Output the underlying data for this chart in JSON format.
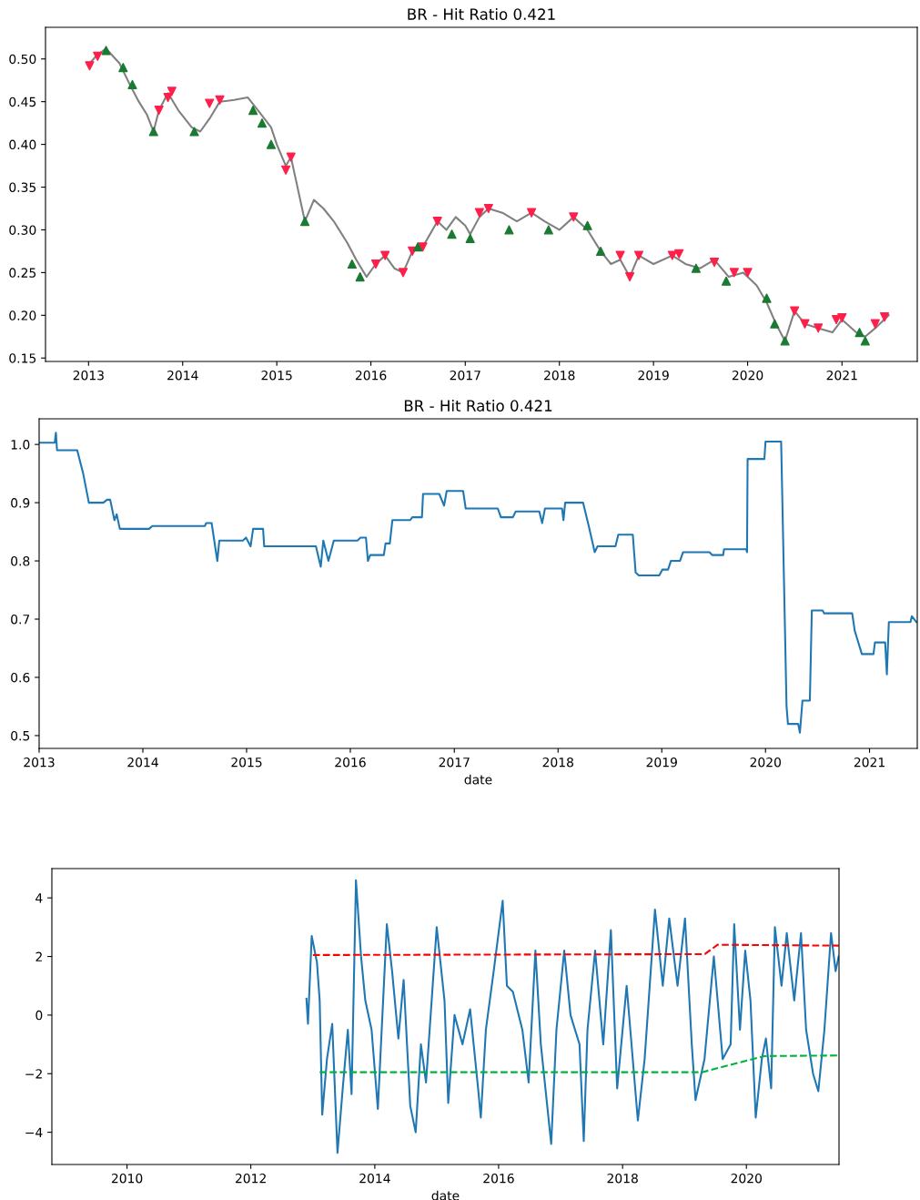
{
  "chart_data": [
    {
      "type": "line",
      "title": "BR - Hit Ratio 0.421",
      "xlim": [
        "2012-07-18",
        "2021-10-20"
      ],
      "ylim": [
        0.146,
        0.537
      ],
      "xticks": [
        "2013",
        "2014",
        "2015",
        "2016",
        "2017",
        "2018",
        "2019",
        "2020",
        "2021"
      ],
      "yticks": [
        0.15,
        {
          "value": 0.2,
          "label": "0.20"
        },
        0.25,
        {
          "value": 0.3,
          "label": "0.30"
        },
        0.35,
        {
          "value": 0.4,
          "label": "0.40"
        },
        0.45,
        {
          "value": 0.5,
          "label": "0.50"
        }
      ],
      "grid": false,
      "legend": false,
      "series": [
        {
          "color": "#808080",
          "marker": "none",
          "x": [
            "2013-01-05",
            "2013-02-05",
            "2013-03-10",
            "2013-05-01",
            "2013-06-10",
            "2013-07-15",
            "2013-08-15",
            "2013-09-10",
            "2013-10-01",
            "2013-11-05",
            "2013-12-15",
            "2014-02-05",
            "2014-03-10",
            "2014-04-15",
            "2014-05-25",
            "2014-07-20",
            "2014-09-10",
            "2014-10-20",
            "2014-12-10",
            "2015-01-01",
            "2015-02-05",
            "2015-02-25",
            "2015-03-15",
            "2015-04-20",
            "2015-05-25",
            "2015-07-01",
            "2015-08-10",
            "2015-10-01",
            "2015-11-05",
            "2015-12-15",
            "2016-01-20",
            "2016-02-25",
            "2016-04-01",
            "2016-05-05",
            "2016-06-10",
            "2016-07-20",
            "2016-09-15",
            "2016-10-20",
            "2016-11-25",
            "2017-01-01",
            "2017-01-20",
            "2017-02-25",
            "2017-04-01",
            "2017-05-25",
            "2017-07-20",
            "2017-09-15",
            "2017-11-05",
            "2018-01-01",
            "2018-02-25",
            "2018-04-20",
            "2018-06-10",
            "2018-07-20",
            "2018-08-25",
            "2018-10-01",
            "2018-11-05",
            "2019-01-01",
            "2019-03-15",
            "2019-05-05",
            "2019-07-01",
            "2019-08-25",
            "2019-10-20",
            "2019-12-15",
            "2020-01-01",
            "2020-02-05",
            "2020-03-15",
            "2020-04-20",
            "2020-05-25",
            "2020-07-01",
            "2020-08-10",
            "2020-10-01",
            "2020-11-25",
            "2021-01-01",
            "2021-02-25",
            "2021-04-01",
            "2021-05-10",
            "2021-07-01"
          ],
          "values": [
            0.495,
            0.505,
            0.512,
            0.495,
            0.47,
            0.45,
            0.435,
            0.415,
            0.44,
            0.46,
            0.44,
            0.42,
            0.415,
            0.43,
            0.45,
            0.452,
            0.455,
            0.44,
            0.42,
            0.4,
            0.375,
            0.385,
            0.36,
            0.31,
            0.335,
            0.325,
            0.31,
            0.285,
            0.265,
            0.245,
            0.26,
            0.27,
            0.255,
            0.25,
            0.275,
            0.28,
            0.31,
            0.3,
            0.315,
            0.305,
            0.295,
            0.315,
            0.325,
            0.32,
            0.31,
            0.32,
            0.31,
            0.3,
            0.315,
            0.3,
            0.275,
            0.26,
            0.265,
            0.245,
            0.27,
            0.26,
            0.27,
            0.26,
            0.255,
            0.265,
            0.245,
            0.25,
            0.245,
            0.235,
            0.215,
            0.19,
            0.17,
            0.205,
            0.19,
            0.185,
            0.18,
            0.195,
            0.18,
            0.175,
            0.185,
            0.2
          ]
        },
        {
          "type": "scatter",
          "color": "#ff1f4b",
          "marker": "triangle_down",
          "x": [
            "2013-01-05",
            "2013-02-05",
            "2013-10-01",
            "2013-11-05",
            "2013-11-20",
            "2014-04-15",
            "2014-05-25",
            "2015-02-05",
            "2015-02-25",
            "2016-01-20",
            "2016-02-25",
            "2016-05-05",
            "2016-06-10",
            "2016-07-20",
            "2016-09-15",
            "2017-02-25",
            "2017-04-01",
            "2017-09-15",
            "2018-02-25",
            "2018-08-25",
            "2018-10-01",
            "2018-11-05",
            "2019-03-15",
            "2019-04-10",
            "2019-08-25",
            "2019-11-10",
            "2020-01-01",
            "2020-07-01",
            "2020-08-10",
            "2020-10-01",
            "2020-12-10",
            "2021-01-01",
            "2021-05-10",
            "2021-06-15"
          ],
          "values": [
            0.492,
            0.503,
            0.44,
            0.455,
            0.462,
            0.448,
            0.452,
            0.37,
            0.385,
            0.26,
            0.27,
            0.25,
            0.275,
            0.28,
            0.31,
            0.32,
            0.325,
            0.32,
            0.315,
            0.27,
            0.245,
            0.27,
            0.27,
            0.272,
            0.262,
            0.25,
            0.25,
            0.205,
            0.19,
            0.185,
            0.195,
            0.197,
            0.19,
            0.198
          ]
        },
        {
          "type": "scatter",
          "color": "#1a7a32",
          "marker": "triangle",
          "x": [
            "2013-03-10",
            "2013-05-15",
            "2013-06-20",
            "2013-09-10",
            "2014-02-15",
            "2014-10-01",
            "2014-11-05",
            "2014-12-10",
            "2015-04-20",
            "2015-10-20",
            "2015-11-20",
            "2016-07-01",
            "2016-11-10",
            "2017-01-20",
            "2017-06-20",
            "2017-11-20",
            "2018-04-20",
            "2018-06-10",
            "2019-06-15",
            "2019-10-10",
            "2020-03-15",
            "2020-04-15",
            "2020-05-25",
            "2021-03-10",
            "2021-04-01"
          ],
          "values": [
            0.51,
            0.49,
            0.47,
            0.415,
            0.415,
            0.44,
            0.425,
            0.4,
            0.31,
            0.26,
            0.245,
            0.28,
            0.295,
            0.29,
            0.3,
            0.3,
            0.305,
            0.275,
            0.255,
            0.24,
            0.22,
            0.19,
            0.17,
            0.18,
            0.17
          ]
        }
      ]
    },
    {
      "type": "line",
      "title": "BR - Hit Ratio 0.421",
      "xlabel": "date",
      "xlim": [
        "2013-01-01",
        "2021-06-18"
      ],
      "ylim": [
        0.478,
        1.044
      ],
      "xticks": [
        "2013",
        "2014",
        "2015",
        "2016",
        "2017",
        "2018",
        "2019",
        "2020",
        "2021"
      ],
      "yticks": [
        0.5,
        0.6,
        0.7,
        0.8,
        0.9,
        {
          "value": 1,
          "label": "1.0"
        }
      ],
      "grid": false,
      "legend": false,
      "series": [
        {
          "color": "#1f77b4",
          "marker": "none",
          "x": [
            "2013-01-01",
            "2013-02-25",
            "2013-03-01",
            "2013-03-05",
            "2013-05-15",
            "2013-06-05",
            "2013-06-25",
            "2013-08-15",
            "2013-08-28",
            "2013-09-08",
            "2013-09-23",
            "2013-10-01",
            "2013-10-12",
            "2014-01-23",
            "2014-02-03",
            "2014-08-07",
            "2014-08-12",
            "2014-08-31",
            "2014-09-20",
            "2014-09-27",
            "2014-12-19",
            "2014-12-30",
            "2015-01-15",
            "2015-01-24",
            "2015-02-28",
            "2015-03-04",
            "2015-09-02",
            "2015-09-19",
            "2015-09-28",
            "2015-10-16",
            "2015-11-04",
            "2016-01-26",
            "2016-02-06",
            "2016-02-25",
            "2016-03-03",
            "2016-03-11",
            "2016-04-28",
            "2016-05-04",
            "2016-05-19",
            "2016-05-28",
            "2016-07-30",
            "2016-08-06",
            "2016-09-09",
            "2016-09-13",
            "2016-11-09",
            "2016-11-26",
            "2016-12-05",
            "2017-02-01",
            "2017-02-10",
            "2017-06-03",
            "2017-06-14",
            "2017-07-26",
            "2017-08-05",
            "2017-10-27",
            "2017-11-06",
            "2017-11-16",
            "2018-01-15",
            "2018-01-20",
            "2018-01-26",
            "2018-03-30",
            "2018-04-19",
            "2018-05-10",
            "2018-05-20",
            "2018-07-22",
            "2018-08-01",
            "2018-09-21",
            "2018-10-01",
            "2018-10-12",
            "2018-12-23",
            "2019-01-03",
            "2019-01-23",
            "2019-02-02",
            "2019-03-06",
            "2019-03-17",
            "2019-06-18",
            "2019-06-28",
            "2019-08-05",
            "2019-08-08",
            "2019-10-25",
            "2019-10-28",
            "2019-10-30",
            "2019-12-28",
            "2020-01-01",
            "2020-02-25",
            "2020-03-15",
            "2020-03-20",
            "2020-04-25",
            "2020-05-01",
            "2020-05-10",
            "2020-06-05",
            "2020-06-12",
            "2020-07-20",
            "2020-07-25",
            "2020-11-01",
            "2020-11-10",
            "2020-12-05",
            "2021-01-15",
            "2021-01-20",
            "2021-02-25",
            "2021-03-03",
            "2021-03-10",
            "2021-05-25",
            "2021-05-30",
            "2021-06-15"
          ],
          "values": [
            1.003,
            1.003,
            1.02,
            0.99,
            0.99,
            0.95,
            0.9,
            0.9,
            0.905,
            0.905,
            0.87,
            0.88,
            0.855,
            0.855,
            0.86,
            0.86,
            0.865,
            0.865,
            0.8,
            0.835,
            0.835,
            0.84,
            0.825,
            0.855,
            0.855,
            0.825,
            0.825,
            0.79,
            0.835,
            0.8,
            0.835,
            0.835,
            0.84,
            0.84,
            0.8,
            0.81,
            0.81,
            0.83,
            0.83,
            0.87,
            0.87,
            0.875,
            0.875,
            0.915,
            0.915,
            0.895,
            0.92,
            0.92,
            0.89,
            0.89,
            0.875,
            0.875,
            0.885,
            0.885,
            0.865,
            0.89,
            0.89,
            0.87,
            0.9,
            0.9,
            0.86,
            0.815,
            0.825,
            0.825,
            0.845,
            0.845,
            0.78,
            0.775,
            0.775,
            0.785,
            0.785,
            0.8,
            0.8,
            0.815,
            0.815,
            0.81,
            0.81,
            0.82,
            0.82,
            0.815,
            0.975,
            0.975,
            1.005,
            1.005,
            0.55,
            0.52,
            0.52,
            0.505,
            0.56,
            0.56,
            0.715,
            0.715,
            0.71,
            0.71,
            0.68,
            0.64,
            0.64,
            0.66,
            0.66,
            0.605,
            0.695,
            0.695,
            0.705,
            0.695
          ]
        }
      ]
    },
    {
      "type": "line",
      "xlabel": "date",
      "xlim": [
        "2008-10-15",
        "2021-06-30"
      ],
      "ylim": [
        -5.1,
        5.0
      ],
      "xticks": [
        "2010",
        "2012",
        "2014",
        "2016",
        "2018",
        "2020"
      ],
      "yticks": [
        {
          "value": -4,
          "label": "−4"
        },
        {
          "value": -2,
          "label": "−2"
        },
        0,
        2,
        4
      ],
      "grid": false,
      "legend": false,
      "series": [
        {
          "color": "#1f77b4",
          "line_style": "solid",
          "x": [
            "2012-11-24",
            "2012-12-03",
            "2012-12-25",
            "2013-01-25",
            "2013-02-10",
            "2013-02-25",
            "2013-03-25",
            "2013-04-25",
            "2013-05-26",
            "2013-06-26",
            "2013-07-26",
            "2013-08-17",
            "2013-09-12",
            "2013-10-12",
            "2013-11-06",
            "2013-12-13",
            "2014-01-19",
            "2014-03-13",
            "2014-04-13",
            "2014-05-20",
            "2014-06-20",
            "2014-07-29",
            "2014-08-30",
            "2014-09-30",
            "2014-10-30",
            "2015-01-01",
            "2015-02-16",
            "2015-03-10",
            "2015-04-16",
            "2015-06-02",
            "2015-07-17",
            "2015-09-02",
            "2015-09-18",
            "2015-10-18",
            "2015-12-03",
            "2016-01-25",
            "2016-02-19",
            "2016-03-25",
            "2016-05-20",
            "2016-06-26",
            "2016-08-05",
            "2016-09-06",
            "2016-11-06",
            "2016-12-07",
            "2017-01-22",
            "2017-02-28",
            "2017-04-22",
            "2017-05-17",
            "2017-06-08",
            "2017-07-23",
            "2017-09-09",
            "2017-10-24",
            "2017-11-30",
            "2018-01-25",
            "2018-04-01",
            "2018-05-11",
            "2018-07-11",
            "2018-08-26",
            "2018-10-03",
            "2018-11-21",
            "2019-01-04",
            "2019-02-13",
            "2019-03-07",
            "2019-04-29",
            "2019-06-23",
            "2019-08-14",
            "2019-09-30",
            "2019-10-21",
            "2019-11-24",
            "2019-12-25",
            "2020-01-25",
            "2020-02-25",
            "2020-04-01",
            "2020-04-25",
            "2020-05-26",
            "2020-06-17",
            "2020-07-26",
            "2020-08-26",
            "2020-10-09",
            "2020-11-18",
            "2020-12-18",
            "2021-01-28",
            "2021-02-28",
            "2021-04-05",
            "2021-05-14",
            "2021-06-10",
            "2021-06-28"
          ],
          "values": [
            0.56,
            -0.3,
            2.7,
            1.8,
            0.5,
            -3.4,
            -1.5,
            -0.3,
            -4.7,
            -2.5,
            -0.5,
            -2.7,
            4.6,
            2.0,
            0.5,
            -0.5,
            -3.2,
            3.1,
            1.5,
            -0.8,
            1.2,
            -3.1,
            -4.0,
            -1.0,
            -2.3,
            3.0,
            0.5,
            -3.0,
            0.0,
            -1.0,
            0.2,
            -2.5,
            -3.5,
            -0.5,
            1.5,
            3.9,
            1.0,
            0.8,
            -0.5,
            -2.3,
            2.2,
            -1.0,
            -4.4,
            -0.5,
            2.2,
            0.0,
            -1.0,
            -4.3,
            -0.5,
            2.2,
            -1.0,
            2.9,
            -2.5,
            1.0,
            -3.6,
            -1.5,
            3.6,
            1.0,
            3.3,
            1.0,
            3.3,
            -1.0,
            -2.9,
            -1.5,
            2.0,
            -1.5,
            -1.0,
            3.1,
            -0.5,
            2.2,
            0.5,
            -3.5,
            -1.5,
            -0.8,
            -2.5,
            3.0,
            1.0,
            2.8,
            0.5,
            2.8,
            -0.5,
            -2.0,
            -2.6,
            -0.5,
            2.8,
            1.5,
            2.0
          ]
        },
        {
          "color": "#ff0000",
          "line_style": "dashed",
          "x": [
            "2013-01-01",
            "2019-05-01",
            "2019-07-15",
            "2021-06-28"
          ],
          "values": [
            2.05,
            2.08,
            2.4,
            2.37
          ]
        },
        {
          "color": "#00b33c",
          "line_style": "dashed",
          "x": [
            "2013-02-10",
            "2019-04-15",
            "2020-04-15",
            "2021-06-28"
          ],
          "values": [
            -1.95,
            -1.95,
            -1.4,
            -1.38
          ]
        }
      ]
    }
  ]
}
